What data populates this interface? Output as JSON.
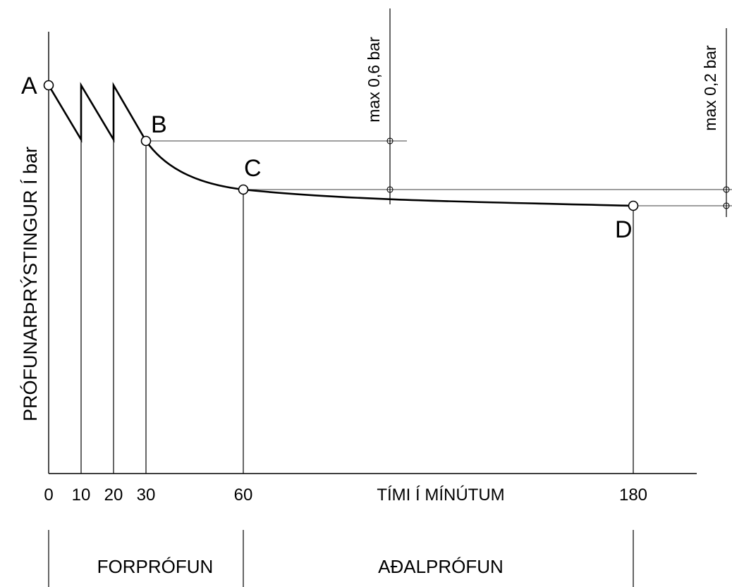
{
  "axes": {
    "y_label": "PRÓFUNARÞRÝSTINGUR Í bar",
    "x_label": "TÍMI Í MÍNÚTUM",
    "x_ticks": [
      "0",
      "10",
      "20",
      "30",
      "60",
      "180"
    ]
  },
  "points": {
    "a": "A",
    "b": "B",
    "c": "C",
    "d": "D"
  },
  "limits": {
    "first": "max 0,6 bar",
    "second": "max 0,2 bar"
  },
  "phases": {
    "pre_test": "FORPRÓFUN",
    "main_test": "AÐALPRÓFUN"
  }
}
